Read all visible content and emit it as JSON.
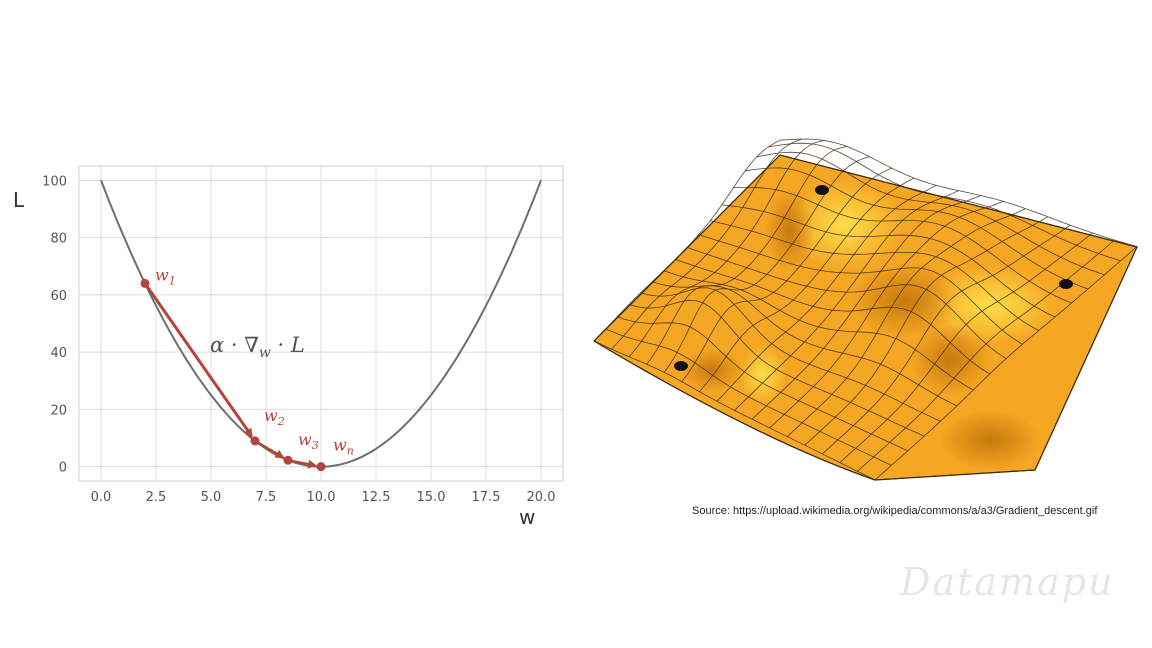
{
  "chart_data": {
    "type": "line",
    "title": "",
    "xlabel": "w",
    "ylabel": "L",
    "xlim": [
      -1,
      21
    ],
    "ylim": [
      -5,
      105
    ],
    "grid": true,
    "x_ticks": [
      "0.0",
      "2.5",
      "5.0",
      "7.5",
      "10.0",
      "12.5",
      "15.0",
      "17.5",
      "20.0"
    ],
    "y_ticks": [
      "0",
      "20",
      "40",
      "60",
      "80",
      "100"
    ],
    "curve": {
      "function": "(w - 10)^2",
      "x_range": [
        0,
        20
      ]
    },
    "steps": [
      {
        "label": "w",
        "sub": "1",
        "x": 2.0,
        "y": 64
      },
      {
        "label": "w",
        "sub": "2",
        "x": 7.0,
        "y": 9
      },
      {
        "label": "w",
        "sub": "3",
        "x": 8.5,
        "y": 2.25
      },
      {
        "label": "w",
        "sub": "n",
        "x": 10.0,
        "y": 0
      }
    ],
    "annotation": "α · ∇",
    "annotation_sub": "w",
    "annotation_tail": " · L",
    "colors": {
      "curve": "#6e6e6e",
      "steps": "#b5443a",
      "grid": "#dcdcdc"
    }
  },
  "surface": {
    "colors": {
      "base": "#f5a623",
      "light": "#ffd23a",
      "shadow": "#c0760a",
      "mesh": "#3a2a10"
    }
  },
  "source": "Source: https://upload.wikimedia.org/wikipedia/commons/a/a3/Gradient_descent.gif",
  "watermark": "Datamapu"
}
